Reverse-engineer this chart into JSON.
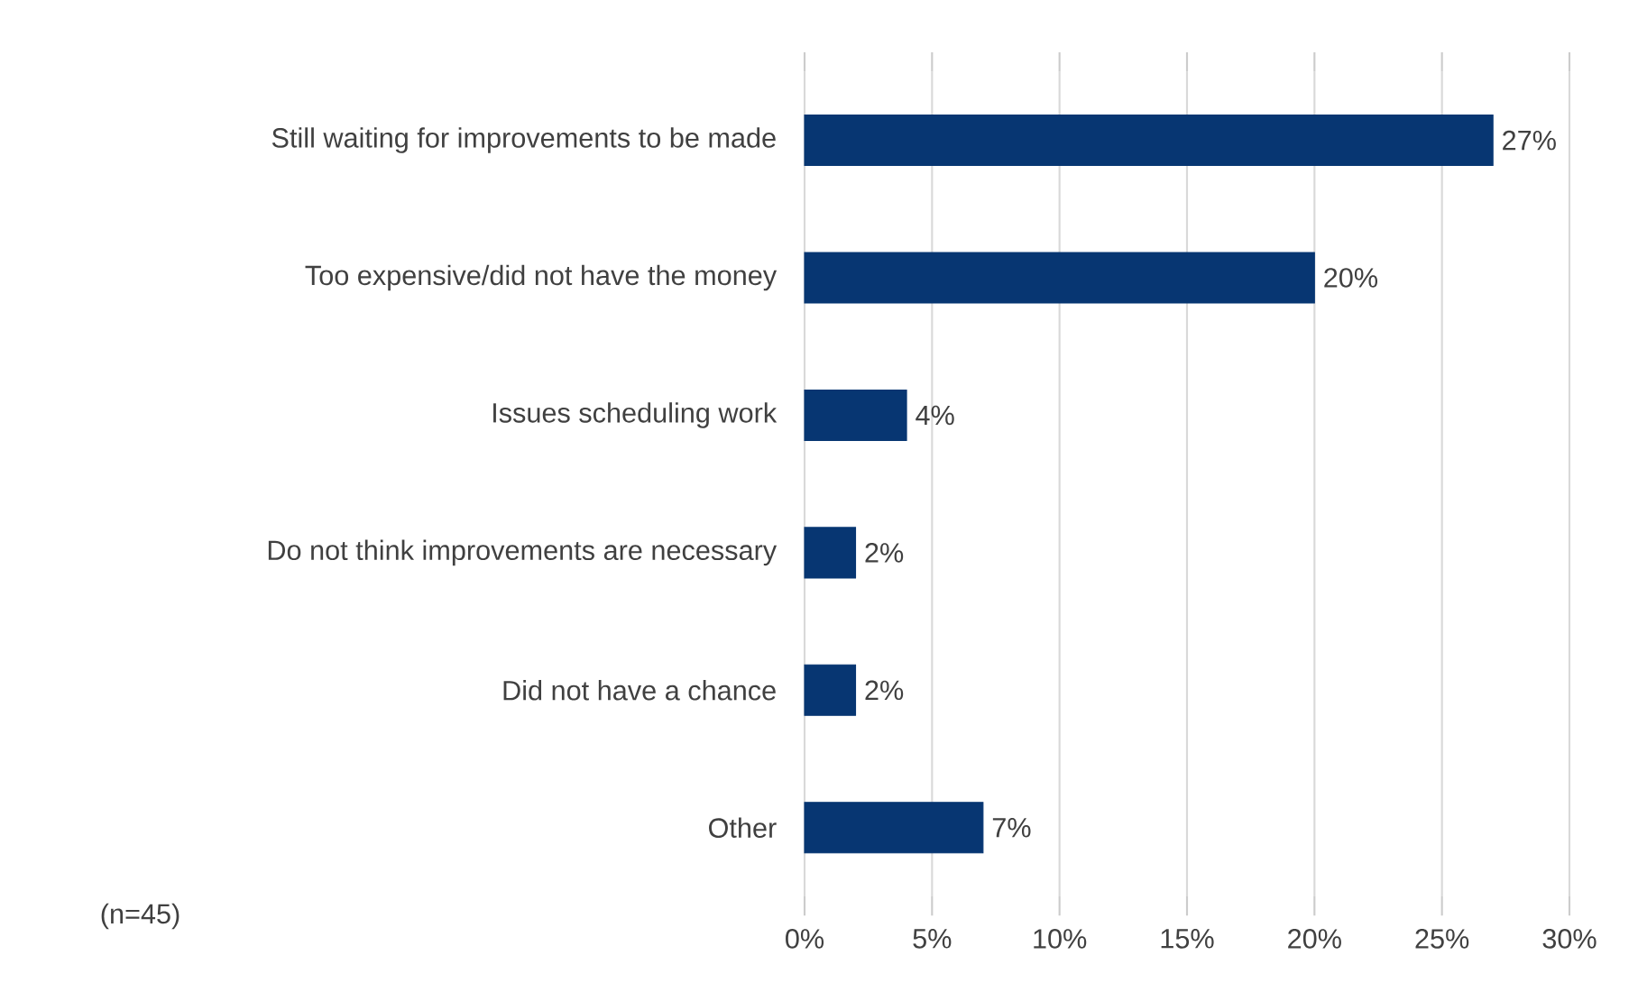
{
  "chart_data": {
    "type": "bar",
    "orientation": "horizontal",
    "categories": [
      "Still waiting for improvements to be made",
      "Too expensive/did not have the money",
      "Issues scheduling work",
      "Do not think improvements are necessary",
      "Did not have a chance",
      "Other"
    ],
    "values": [
      27,
      20,
      4,
      2,
      2,
      7
    ],
    "value_labels": [
      "27%",
      "20%",
      "4%",
      "2%",
      "2%",
      "7%"
    ],
    "color": "#073672",
    "xlim": [
      0,
      30
    ],
    "xticks": [
      {
        "value": 0,
        "label": "0%"
      },
      {
        "value": 5,
        "label": "5%"
      },
      {
        "value": 10,
        "label": "10%"
      },
      {
        "value": 15,
        "label": "15%"
      },
      {
        "value": 20,
        "label": "20%"
      },
      {
        "value": 25,
        "label": "25%"
      },
      {
        "value": 30,
        "label": "30%"
      }
    ],
    "grid": "x",
    "annotations": [
      "(n=45)"
    ]
  }
}
